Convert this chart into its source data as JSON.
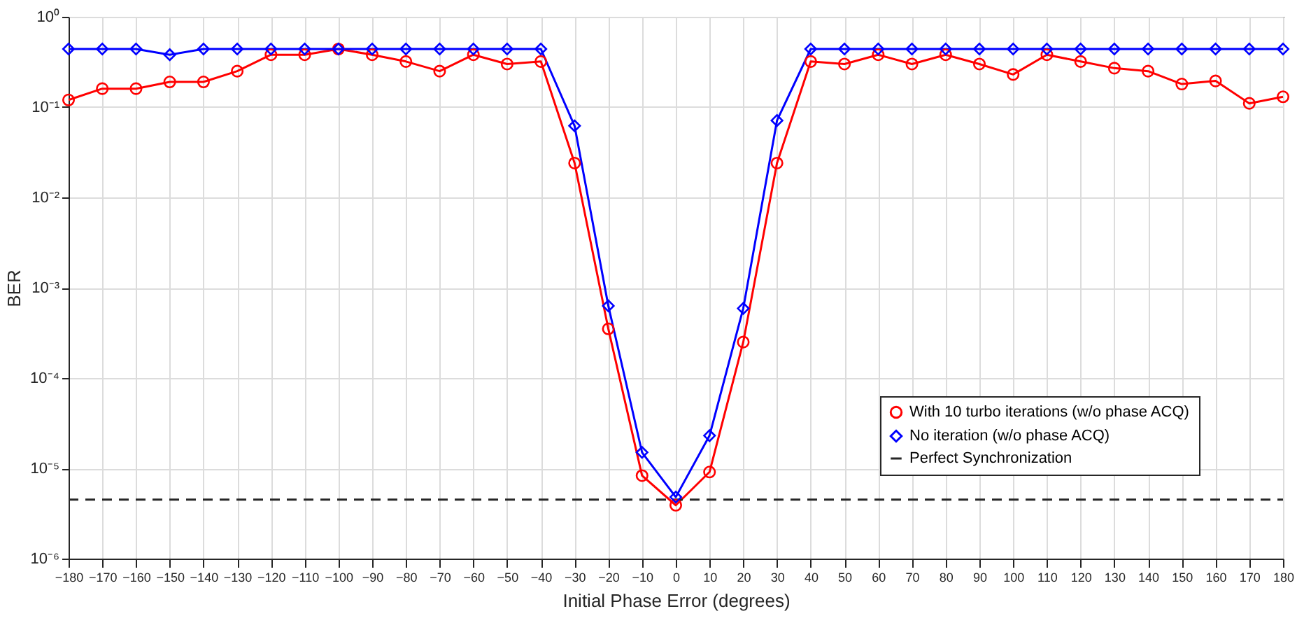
{
  "chart_data": {
    "type": "line",
    "xlabel": "Initial Phase Error (degrees)",
    "ylabel": "BER",
    "x": [
      -180,
      -170,
      -160,
      -150,
      -140,
      -130,
      -120,
      -110,
      -100,
      -90,
      -80,
      -70,
      -60,
      -50,
      -40,
      -30,
      -20,
      -10,
      0,
      10,
      20,
      30,
      40,
      50,
      60,
      70,
      80,
      90,
      100,
      110,
      120,
      130,
      140,
      150,
      160,
      170,
      180
    ],
    "series": [
      {
        "name": "With 10 turbo iterations (w/o phase ACQ)",
        "color": "#ff0000",
        "marker": "circle",
        "values": [
          0.12,
          0.16,
          0.16,
          0.19,
          0.19,
          0.25,
          0.38,
          0.38,
          0.44,
          0.38,
          0.32,
          0.25,
          0.38,
          0.3,
          0.32,
          0.024,
          0.00035,
          8.3e-06,
          3.9e-06,
          9.1e-06,
          0.00025,
          0.024,
          0.32,
          0.3,
          0.38,
          0.3,
          0.38,
          0.3,
          0.23,
          0.38,
          0.32,
          0.27,
          0.25,
          0.18,
          0.195,
          0.11,
          0.13
        ]
      },
      {
        "name": "No iteration (w/o phase ACQ)",
        "color": "#0000ff",
        "marker": "diamond",
        "values": [
          0.44,
          0.44,
          0.44,
          0.38,
          0.44,
          0.44,
          0.44,
          0.44,
          0.44,
          0.44,
          0.44,
          0.44,
          0.44,
          0.44,
          0.44,
          0.062,
          0.00063,
          1.5e-05,
          4.8e-06,
          2.3e-05,
          0.00059,
          0.071,
          0.44,
          0.44,
          0.44,
          0.44,
          0.44,
          0.44,
          0.44,
          0.44,
          0.44,
          0.44,
          0.44,
          0.44,
          0.44,
          0.44,
          0.44
        ]
      },
      {
        "name": "Perfect Synchronization",
        "color": "#262626",
        "marker": "none",
        "line_style": "dashed",
        "values": [
          4.5e-06,
          4.5e-06,
          4.5e-06,
          4.5e-06,
          4.5e-06,
          4.5e-06,
          4.5e-06,
          4.5e-06,
          4.5e-06,
          4.5e-06,
          4.5e-06,
          4.5e-06,
          4.5e-06,
          4.5e-06,
          4.5e-06,
          4.5e-06,
          4.5e-06,
          4.5e-06,
          4.5e-06,
          4.5e-06,
          4.5e-06,
          4.5e-06,
          4.5e-06,
          4.5e-06,
          4.5e-06,
          4.5e-06,
          4.5e-06,
          4.5e-06,
          4.5e-06,
          4.5e-06,
          4.5e-06,
          4.5e-06,
          4.5e-06,
          4.5e-06,
          4.5e-06,
          4.5e-06,
          4.5e-06
        ]
      }
    ],
    "xlim": [
      -180,
      180
    ],
    "xticks": [
      -180,
      -170,
      -160,
      -150,
      -140,
      -130,
      -120,
      -110,
      -100,
      -90,
      -80,
      -70,
      -60,
      -50,
      -40,
      -30,
      -20,
      -10,
      0,
      10,
      20,
      30,
      40,
      50,
      60,
      70,
      80,
      90,
      100,
      110,
      120,
      130,
      140,
      150,
      160,
      170,
      180
    ],
    "ylim": [
      1e-06,
      1
    ],
    "yticks": [
      {
        "value": 1e-06,
        "label": "10⁻⁶"
      },
      {
        "value": 1e-05,
        "label": "10⁻⁵"
      },
      {
        "value": 0.0001,
        "label": "10⁻⁴"
      },
      {
        "value": 0.001,
        "label": "10⁻³"
      },
      {
        "value": 0.01,
        "label": "10⁻²"
      },
      {
        "value": 0.1,
        "label": "10⁻¹"
      },
      {
        "value": 1,
        "label": "10⁰"
      }
    ],
    "log": "y",
    "grid": true,
    "legend": "bottom right",
    "line_style": "solid"
  }
}
